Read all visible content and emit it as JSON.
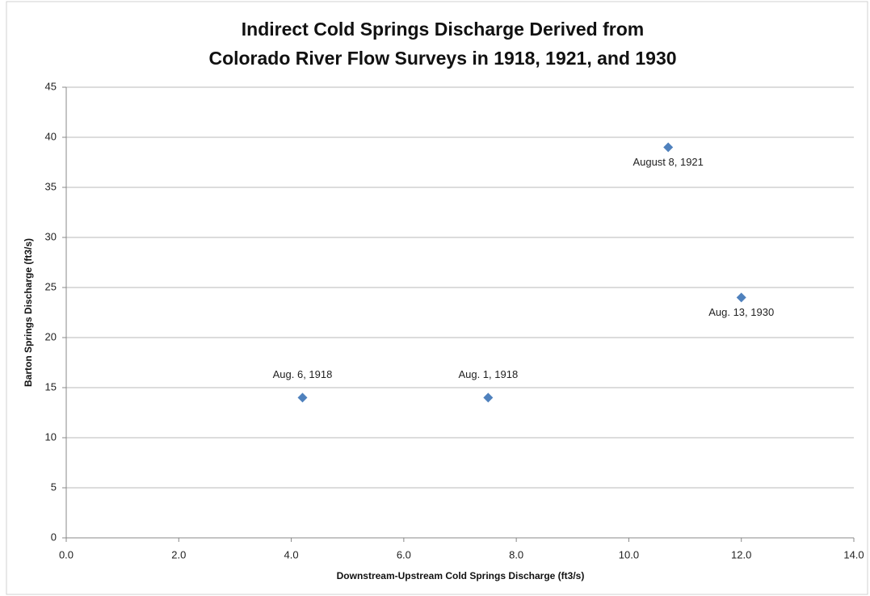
{
  "chart_data": {
    "type": "scatter",
    "title": [
      "Indirect Cold Springs Discharge Derived from",
      "Colorado River Flow Surveys in 1918, 1921, and 1930"
    ],
    "x_label": "Downstream-Upstream Cold Springs Discharge (ft3/s)",
    "y_label": "Barton Springs Discharge (ft3/s)",
    "x": [
      4.2,
      7.5,
      10.7,
      12.0
    ],
    "values": [
      14,
      14,
      39,
      24
    ],
    "point_labels": [
      "Aug. 6, 1918",
      "Aug. 1, 1918",
      "August 8, 1921",
      "Aug. 13, 1930"
    ],
    "color": "#4f81bd",
    "xlim": [
      0,
      14
    ],
    "xticks": [
      {
        "value": 0,
        "label": "0.0"
      },
      {
        "value": 2,
        "label": "2.0"
      },
      {
        "value": 4,
        "label": "4.0"
      },
      {
        "value": 6,
        "label": "6.0"
      },
      {
        "value": 8,
        "label": "8.0"
      },
      {
        "value": 10,
        "label": "10.0"
      },
      {
        "value": 12,
        "label": "12.0"
      },
      {
        "value": 14,
        "label": "14.0"
      }
    ],
    "ylim": [
      0,
      45
    ],
    "yticks": [
      0,
      5,
      10,
      15,
      20,
      25,
      30,
      35,
      40,
      45
    ],
    "grid": true
  }
}
